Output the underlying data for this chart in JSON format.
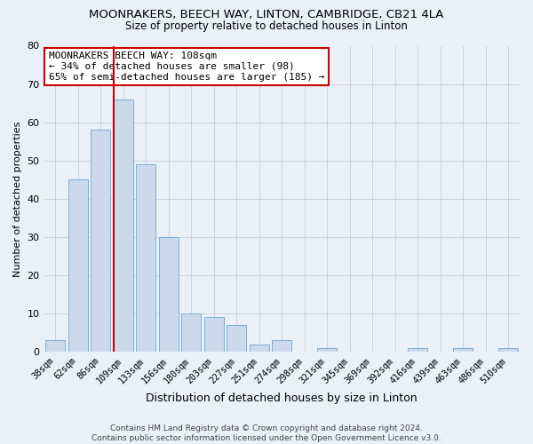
{
  "title": "MOONRAKERS, BEECH WAY, LINTON, CAMBRIDGE, CB21 4LA",
  "subtitle": "Size of property relative to detached houses in Linton",
  "xlabel": "Distribution of detached houses by size in Linton",
  "ylabel": "Number of detached properties",
  "bar_labels": [
    "38sqm",
    "62sqm",
    "86sqm",
    "109sqm",
    "133sqm",
    "156sqm",
    "180sqm",
    "203sqm",
    "227sqm",
    "251sqm",
    "274sqm",
    "298sqm",
    "321sqm",
    "345sqm",
    "369sqm",
    "392sqm",
    "416sqm",
    "439sqm",
    "463sqm",
    "486sqm",
    "510sqm"
  ],
  "bar_heights": [
    3,
    45,
    58,
    66,
    49,
    30,
    10,
    9,
    7,
    2,
    3,
    0,
    1,
    0,
    0,
    0,
    1,
    0,
    1,
    0,
    1
  ],
  "bar_color": "#ccd9ea",
  "bar_edge_color": "#7aafd4",
  "grid_color": "#c8d4e3",
  "background_color": "#eaf0f8",
  "red_line_index": 3,
  "annotation_text": "MOONRAKERS BEECH WAY: 108sqm\n← 34% of detached houses are smaller (98)\n65% of semi-detached houses are larger (185) →",
  "annotation_box_color": "#ffffff",
  "annotation_border_color": "#cc0000",
  "ylim": [
    0,
    80
  ],
  "yticks": [
    0,
    10,
    20,
    30,
    40,
    50,
    60,
    70,
    80
  ],
  "footer_line1": "Contains HM Land Registry data © Crown copyright and database right 2024.",
  "footer_line2": "Contains public sector information licensed under the Open Government Licence v3.0."
}
